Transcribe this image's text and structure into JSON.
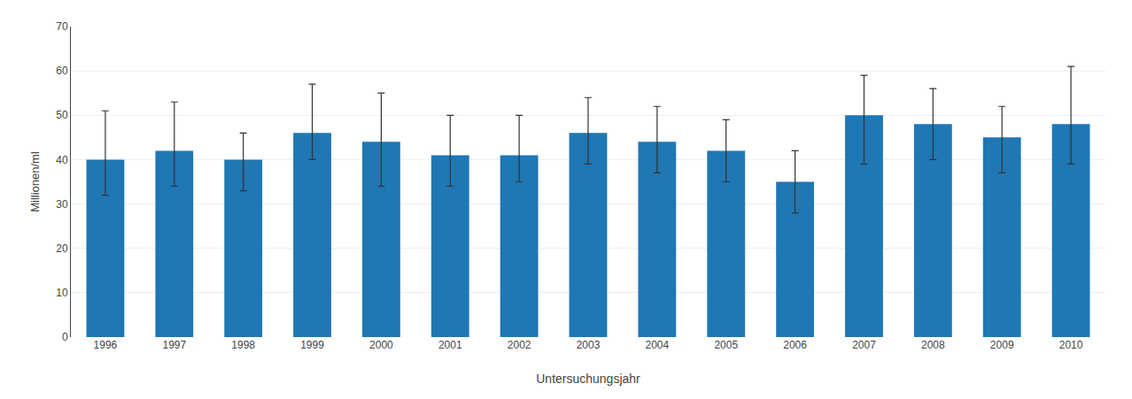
{
  "chart_data": {
    "type": "bar",
    "categories": [
      "1996",
      "1997",
      "1998",
      "1999",
      "2000",
      "2001",
      "2002",
      "2003",
      "2004",
      "2005",
      "2006",
      "2007",
      "2008",
      "2009",
      "2010"
    ],
    "values": [
      40,
      42,
      40,
      46,
      44,
      41,
      41,
      46,
      44,
      42,
      35,
      50,
      48,
      45,
      48
    ],
    "err_upper": [
      11,
      11,
      6,
      11,
      11,
      9,
      9,
      8,
      8,
      7,
      7,
      9,
      8,
      7,
      13
    ],
    "err_lower": [
      8,
      8,
      7,
      6,
      10,
      7,
      6,
      7,
      7,
      7,
      7,
      11,
      8,
      8,
      9
    ],
    "xlabel": "Untersuchungsjahr",
    "ylabel": "Millionen/ml",
    "ylim": [
      0,
      70
    ],
    "yticks": [
      0,
      10,
      20,
      30,
      40,
      50,
      60,
      70
    ],
    "grid": true
  }
}
